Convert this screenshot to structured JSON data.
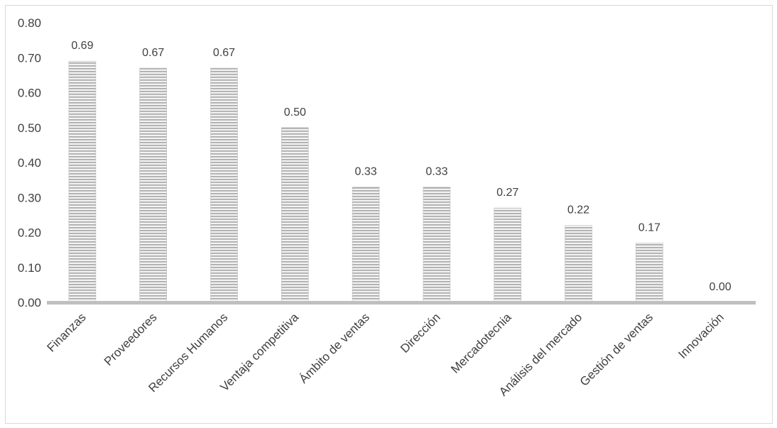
{
  "chart_data": {
    "type": "bar",
    "categories": [
      "Finanzas",
      "Proveedores",
      "Recursos Humanos",
      "Ventaja competitiva",
      "Ámbito de ventas",
      "Dirección",
      "Mercadotecnia",
      "Análisis del mercado",
      "Gestión de ventas",
      "Innovación"
    ],
    "values": [
      0.69,
      0.67,
      0.67,
      0.5,
      0.33,
      0.33,
      0.27,
      0.22,
      0.17,
      0.0
    ],
    "data_labels": [
      "0.69",
      "0.67",
      "0.67",
      "0.50",
      "0.33",
      "0.33",
      "0.27",
      "0.22",
      "0.17",
      "0.00"
    ],
    "yticks": [
      "0.00",
      "0.10",
      "0.20",
      "0.30",
      "0.40",
      "0.50",
      "0.60",
      "0.70",
      "0.80"
    ],
    "ylim": [
      0,
      0.8
    ],
    "title": "",
    "xlabel": "",
    "ylabel": "",
    "grid": false,
    "legend": "none",
    "colors": {
      "bar_stripe": "#a6a6a6",
      "bar_fill": "#f2f2f2",
      "axis": "#bfbfbf",
      "text": "#404040"
    }
  }
}
